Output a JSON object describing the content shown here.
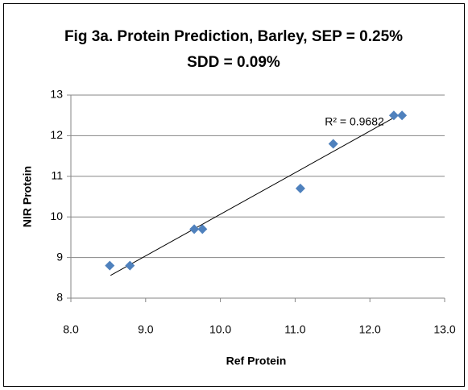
{
  "chart_data": {
    "type": "scatter",
    "title": "Fig 3a. Protein Prediction, Barley, SEP = 0.25% SDD = 0.09%",
    "x_label": "Ref Protein",
    "y_label": "NIR Protein",
    "series": [
      {
        "name": "NIR Protein",
        "color": "#4f81bd",
        "x": [
          8.52,
          8.79,
          9.65,
          9.76,
          11.07,
          11.51,
          12.32,
          12.43
        ],
        "values": [
          8.8,
          8.8,
          9.7,
          9.7,
          10.7,
          11.8,
          12.5,
          12.5
        ]
      }
    ],
    "trendline": {
      "x": [
        8.53,
        12.3
      ],
      "values": [
        8.56,
        12.42
      ],
      "color": "#000000"
    },
    "annotation": "R² = 0.9682",
    "xlim": [
      8,
      13
    ],
    "xticks": [
      {
        "value": 8,
        "label": "8.0"
      },
      {
        "value": 9,
        "label": "9.0"
      },
      {
        "value": 10,
        "label": "10.0"
      },
      {
        "value": 11,
        "label": "11.0"
      },
      {
        "value": 12,
        "label": "12.0"
      },
      {
        "value": 13,
        "label": "13.0"
      }
    ],
    "ylim": [
      8,
      13
    ],
    "yticks": [
      8,
      9,
      10,
      11,
      12,
      13
    ],
    "grid": true
  }
}
